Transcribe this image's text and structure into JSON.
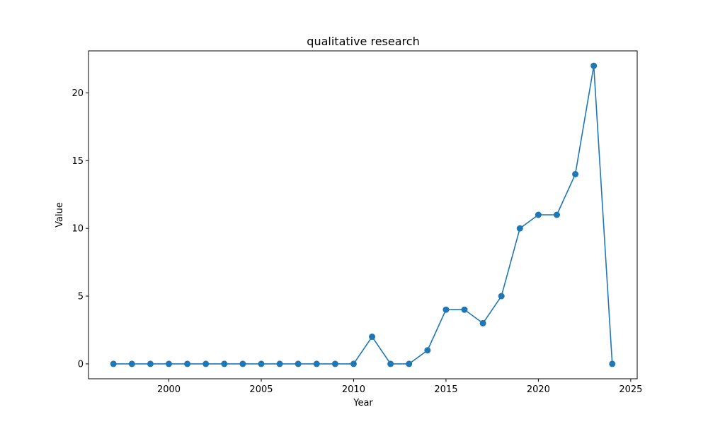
{
  "chart_data": {
    "type": "line",
    "title": "qualitative research",
    "xlabel": "Year",
    "ylabel": "Value",
    "xlim": [
      1995.65,
      2025.35
    ],
    "ylim": [
      -1.1,
      23.1
    ],
    "x_ticks": [
      2000,
      2005,
      2010,
      2015,
      2020,
      2025
    ],
    "y_ticks": [
      0,
      5,
      10,
      15,
      20
    ],
    "grid": false,
    "marker": "circle",
    "series": [
      {
        "color": "#1f77b4",
        "x": [
          1997,
          1998,
          1999,
          2000,
          2001,
          2002,
          2003,
          2004,
          2005,
          2006,
          2007,
          2008,
          2009,
          2010,
          2011,
          2012,
          2013,
          2014,
          2015,
          2016,
          2017,
          2018,
          2019,
          2020,
          2021,
          2022,
          2023,
          2024
        ],
        "values": [
          0,
          0,
          0,
          0,
          0,
          0,
          0,
          0,
          0,
          0,
          0,
          0,
          0,
          0,
          2,
          0,
          0,
          1,
          4,
          4,
          3,
          5,
          10,
          11,
          11,
          14,
          22,
          0
        ]
      }
    ]
  }
}
